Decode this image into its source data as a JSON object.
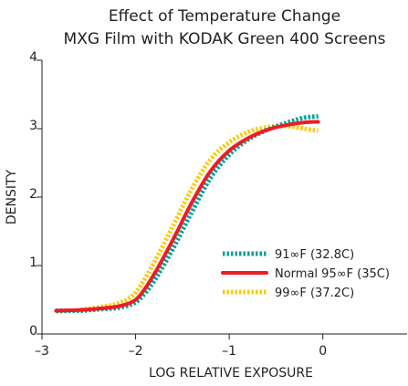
{
  "chart_data": {
    "type": "line",
    "title": "Effect of Temperature Change",
    "subtitle": "MXG Film with KODAK Green 400 Screens",
    "xlabel": "LOG RELATIVE EXPOSURE",
    "ylabel": "DENSITY",
    "xlim": [
      -3.0,
      0.9
    ],
    "ylim": [
      0,
      4
    ],
    "xticks": [
      -3,
      -2,
      -1,
      0
    ],
    "xtick_labels": [
      "–3",
      "–2",
      "–1",
      "0"
    ],
    "yticks": [
      0,
      1,
      2,
      3,
      4
    ],
    "ytick_labels": [
      "0",
      "1",
      "2",
      "3",
      "4"
    ],
    "grid": false,
    "legend_position": "lower-right",
    "series": [
      {
        "name": "91∞F (32.8C)",
        "color": "#00a19a",
        "style": "dotted",
        "x": [
          -2.85,
          -2.6,
          -2.4,
          -2.2,
          -2.05,
          -1.95,
          -1.8,
          -1.6,
          -1.4,
          -1.2,
          -1.0,
          -0.8,
          -0.6,
          -0.4,
          -0.2,
          -0.05
        ],
        "y": [
          0.34,
          0.34,
          0.36,
          0.38,
          0.43,
          0.52,
          0.78,
          1.25,
          1.78,
          2.28,
          2.62,
          2.84,
          2.98,
          3.08,
          3.16,
          3.18
        ]
      },
      {
        "name": "Normal 95∞F (35C)",
        "color": "#ed1c24",
        "style": "solid",
        "x": [
          -2.85,
          -2.6,
          -2.4,
          -2.2,
          -2.05,
          -1.95,
          -1.8,
          -1.6,
          -1.4,
          -1.2,
          -1.0,
          -0.8,
          -0.6,
          -0.4,
          -0.2,
          -0.05
        ],
        "y": [
          0.34,
          0.35,
          0.37,
          0.4,
          0.46,
          0.57,
          0.88,
          1.38,
          1.92,
          2.38,
          2.68,
          2.86,
          2.98,
          3.05,
          3.09,
          3.1
        ]
      },
      {
        "name": "99∞F (37.2C)",
        "color": "#ffcb05",
        "style": "dotted",
        "x": [
          -2.85,
          -2.6,
          -2.4,
          -2.2,
          -2.05,
          -1.95,
          -1.8,
          -1.6,
          -1.4,
          -1.2,
          -1.0,
          -0.8,
          -0.6,
          -0.4,
          -0.2,
          -0.05
        ],
        "y": [
          0.33,
          0.35,
          0.39,
          0.44,
          0.54,
          0.7,
          1.05,
          1.58,
          2.12,
          2.55,
          2.8,
          2.95,
          3.02,
          3.04,
          3.0,
          2.97
        ]
      }
    ]
  }
}
